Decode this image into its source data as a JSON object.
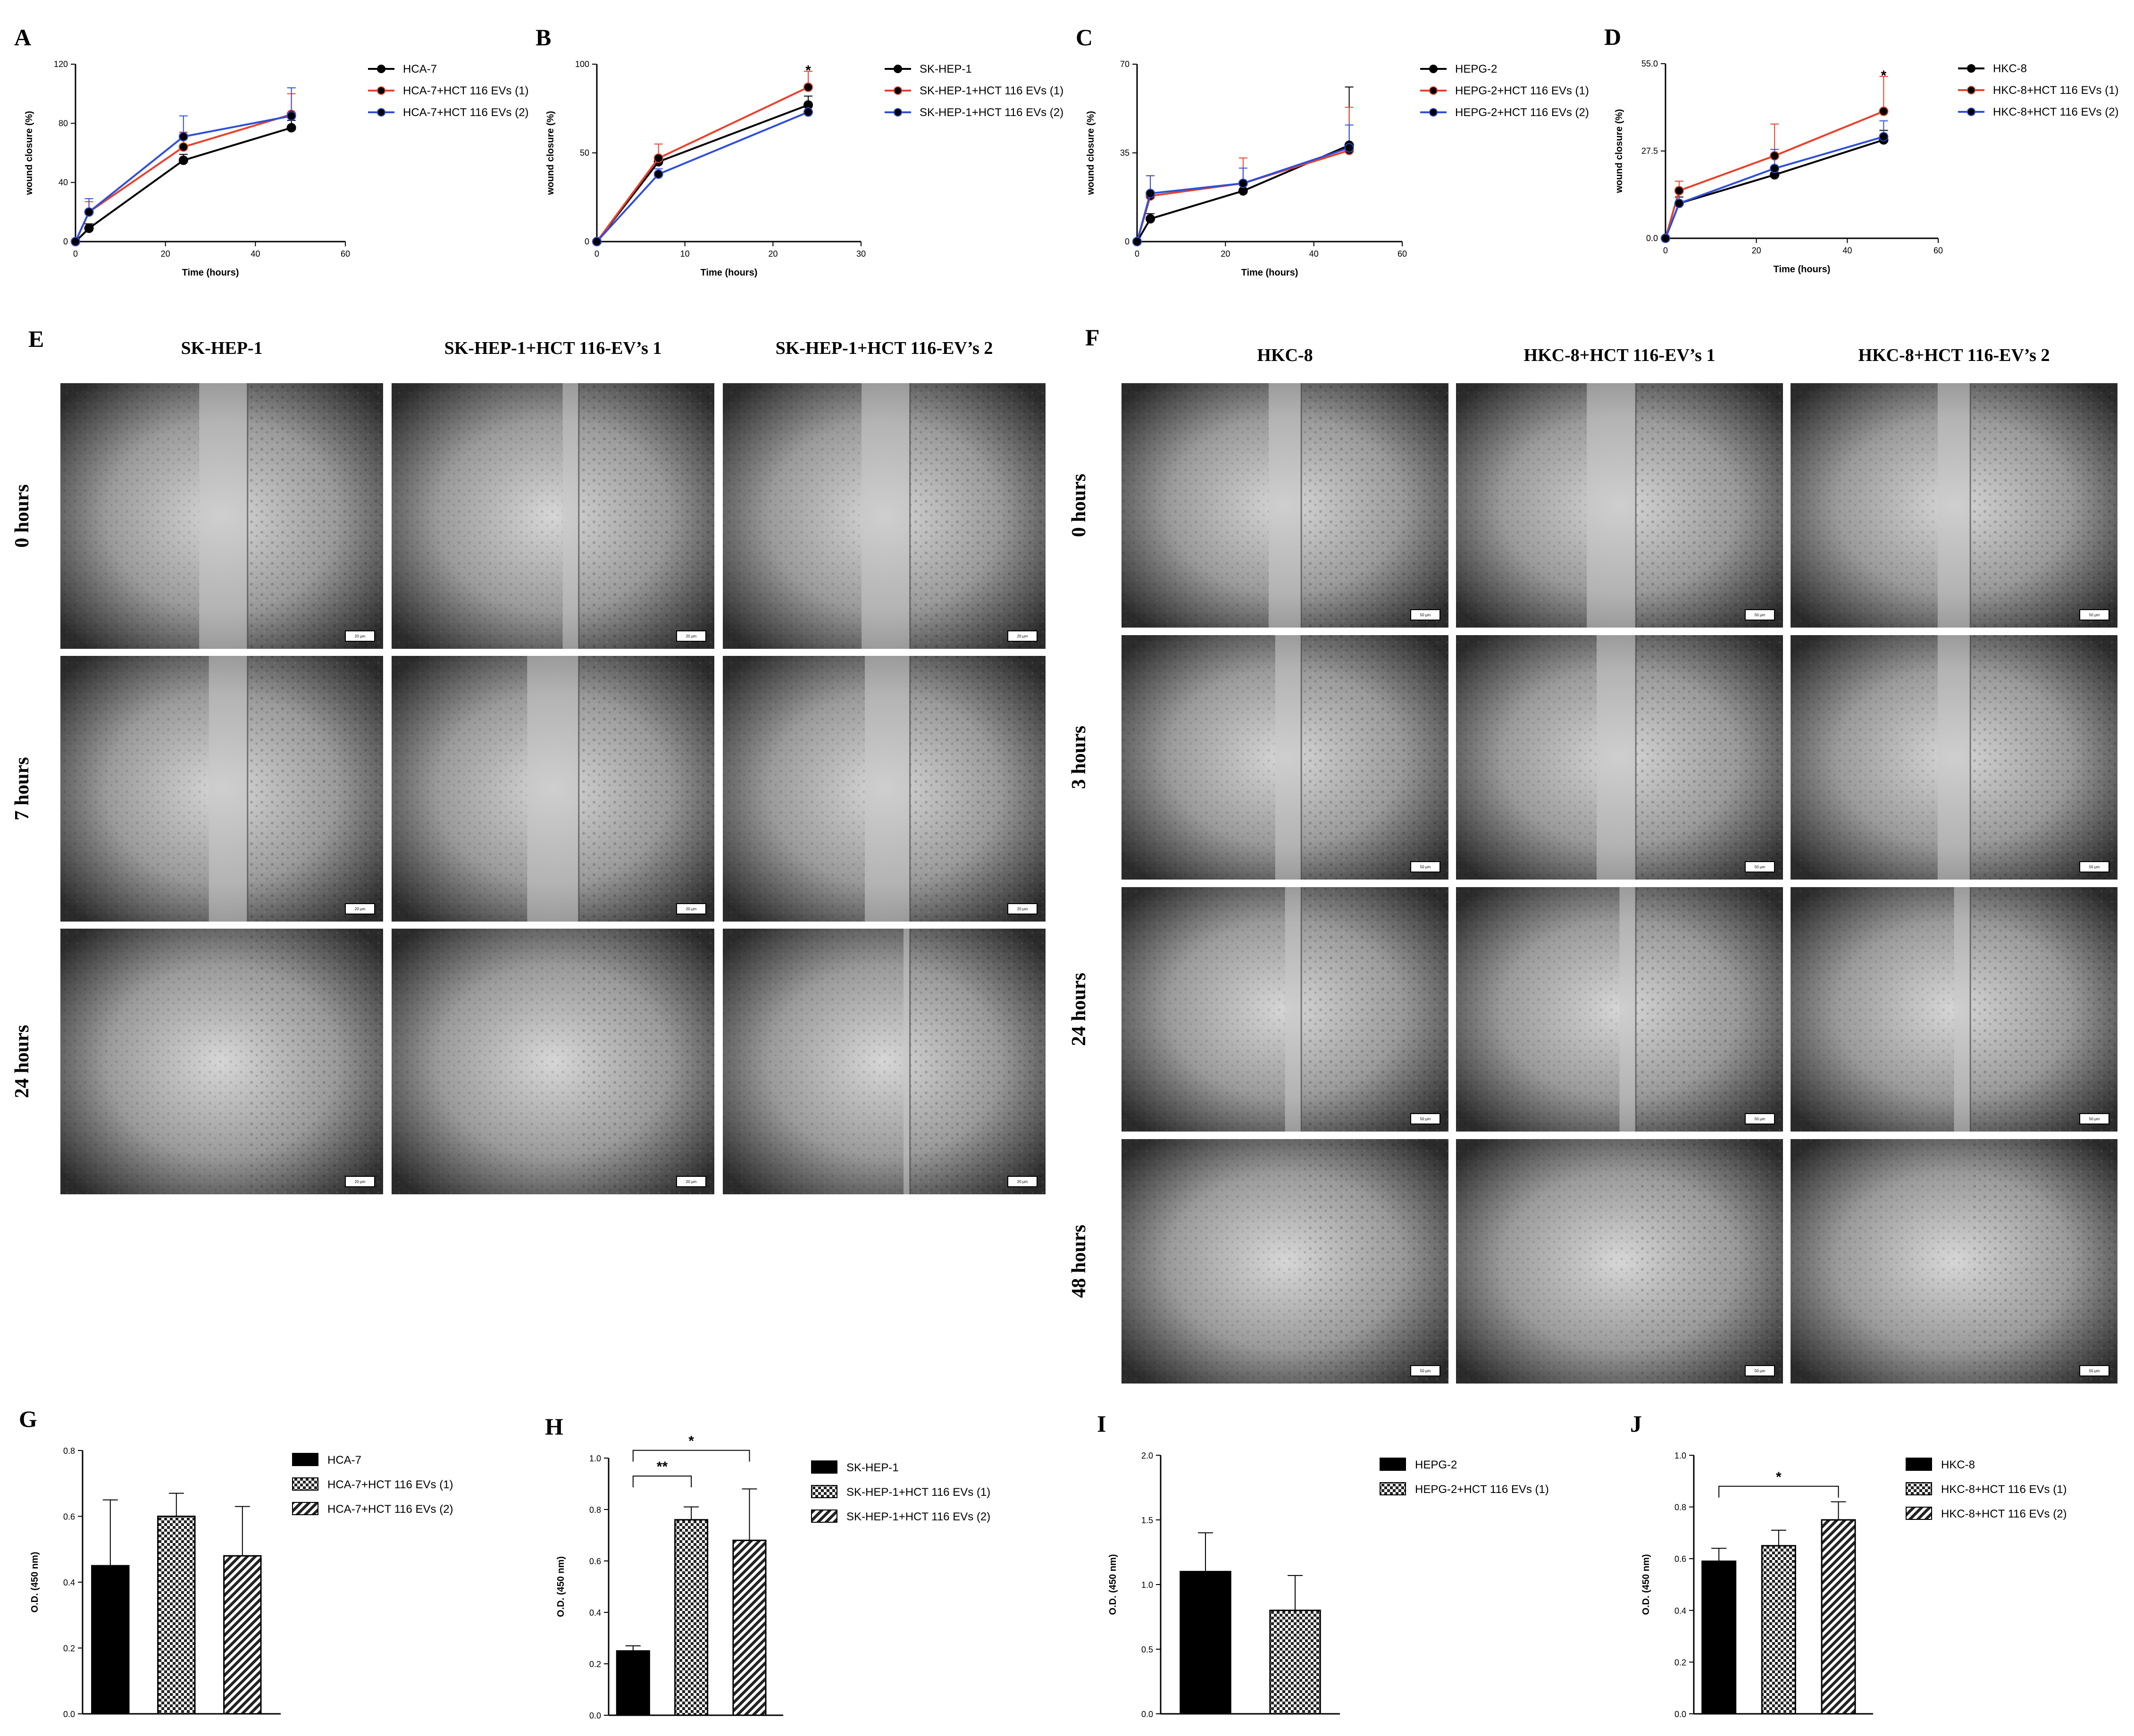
{
  "colors": {
    "black": "#000000",
    "red": "#e8412b",
    "blue": "#2f4fd8",
    "micro_center": "#d0d0d0",
    "micro_edge": "#2a2a2a"
  },
  "line_panels": [
    {
      "letter": "A",
      "chart_data": {
        "type": "line",
        "xlabel": "Time (hours)",
        "ylabel": "wound closure (%)",
        "xlim": [
          0,
          60
        ],
        "ylim": [
          0,
          120
        ],
        "xticks": [
          0,
          20,
          40,
          60
        ],
        "xtick_labels": [
          "0",
          "20",
          "40",
          "60"
        ],
        "yticks": [
          0,
          40,
          80,
          120
        ],
        "ytick_labels": [
          "0",
          "40",
          "80",
          "120"
        ],
        "x": [
          0,
          3,
          24,
          48
        ],
        "series": [
          {
            "name": "HCA-7",
            "color": "black",
            "values": [
              0,
              9,
              55,
              77
            ],
            "err": [
              0,
              3,
              4,
              5
            ]
          },
          {
            "name": "HCA-7+HCT 116 EVs (1)",
            "color": "red",
            "values": [
              0,
              20,
              64,
              86
            ],
            "err": [
              0,
              7,
              10,
              14
            ]
          },
          {
            "name": "HCA-7+HCT 116 EVs (2)",
            "color": "blue",
            "values": [
              0,
              20,
              71,
              85
            ],
            "err": [
              0,
              9,
              14,
              19
            ]
          }
        ],
        "significance": []
      }
    },
    {
      "letter": "B",
      "chart_data": {
        "type": "line",
        "xlabel": "Time (hours)",
        "ylabel": "wound closure (%)",
        "xlim": [
          0,
          30
        ],
        "ylim": [
          0,
          100
        ],
        "xticks": [
          0,
          10,
          20,
          30
        ],
        "xtick_labels": [
          "0",
          "10",
          "20",
          "30"
        ],
        "yticks": [
          0,
          50,
          100
        ],
        "ytick_labels": [
          "0",
          "50",
          "100"
        ],
        "x": [
          0,
          7,
          24
        ],
        "series": [
          {
            "name": "SK-HEP-1",
            "color": "black",
            "values": [
              0,
              45,
              77
            ],
            "err": [
              0,
              3,
              5
            ]
          },
          {
            "name": "SK-HEP-1+HCT 116 EVs (1)",
            "color": "red",
            "values": [
              0,
              47,
              87
            ],
            "err": [
              0,
              8,
              9
            ]
          },
          {
            "name": "SK-HEP-1+HCT 116 EVs (2)",
            "color": "blue",
            "values": [
              0,
              38,
              73
            ],
            "err": [
              0,
              3,
              3
            ]
          }
        ],
        "significance": [
          {
            "x": 24,
            "y": 96,
            "label": "*"
          }
        ]
      }
    },
    {
      "letter": "C",
      "chart_data": {
        "type": "line",
        "xlabel": "Time (hours)",
        "ylabel": "wound closure (%)",
        "xlim": [
          0,
          60
        ],
        "ylim": [
          0,
          70
        ],
        "xticks": [
          0,
          20,
          40,
          60
        ],
        "xtick_labels": [
          "0",
          "20",
          "40",
          "60"
        ],
        "yticks": [
          0,
          35,
          70
        ],
        "ytick_labels": [
          "0",
          "35",
          "70"
        ],
        "x": [
          0,
          3,
          24,
          48
        ],
        "series": [
          {
            "name": "HEPG-2",
            "color": "black",
            "values": [
              0,
              9,
              20,
              38
            ],
            "err": [
              0,
              2,
              3,
              23
            ]
          },
          {
            "name": "HEPG-2+HCT 116 EVs (1)",
            "color": "red",
            "values": [
              0,
              18,
              23,
              36
            ],
            "err": [
              0,
              8,
              10,
              17
            ]
          },
          {
            "name": "HEPG-2+HCT 116 EVs (2)",
            "color": "blue",
            "values": [
              0,
              19,
              23,
              37
            ],
            "err": [
              0,
              7,
              6,
              9
            ]
          }
        ],
        "significance": []
      }
    },
    {
      "letter": "D",
      "chart_data": {
        "type": "line",
        "xlabel": "Time (hours)",
        "ylabel": "wound closure (%)",
        "xlim": [
          0,
          60
        ],
        "ylim": [
          0,
          55
        ],
        "xticks": [
          0,
          20,
          40,
          60
        ],
        "xtick_labels": [
          "0",
          "20",
          "40",
          "60"
        ],
        "yticks": [
          0,
          27.5,
          55
        ],
        "ytick_labels": [
          "0.0",
          "27.5",
          "55.0"
        ],
        "x": [
          0,
          3,
          24,
          48
        ],
        "series": [
          {
            "name": "HKC-8",
            "color": "black",
            "values": [
              0,
              11,
              20,
              31
            ],
            "err": [
              0,
              2,
              2,
              3
            ]
          },
          {
            "name": "HKC-8+HCT 116 EVs (1)",
            "color": "red",
            "values": [
              0,
              15,
              26,
              40
            ],
            "err": [
              0,
              3,
              10,
              11
            ]
          },
          {
            "name": "HKC-8+HCT 116 EVs (2)",
            "color": "blue",
            "values": [
              0,
              11,
              22,
              32
            ],
            "err": [
              0,
              4,
              6,
              5
            ]
          }
        ],
        "significance": [
          {
            "x": 48,
            "y": 51,
            "label": "*"
          }
        ]
      }
    }
  ],
  "bar_panels": [
    {
      "letter": "G",
      "chart_data": {
        "type": "bar",
        "ylabel": "O.D. (450 nm)",
        "ylim": [
          0,
          0.8
        ],
        "yticks": [
          0,
          0.2,
          0.4,
          0.6,
          0.8
        ],
        "ytick_labels": [
          "0.0",
          "0.2",
          "0.4",
          "0.6",
          "0.8"
        ],
        "categories": [
          "HCA-7",
          "HCA-7+HCT 116 EVs (1)",
          "HCA-7+HCT 116 EVs (2)"
        ],
        "values": [
          0.45,
          0.6,
          0.48
        ],
        "err": [
          0.2,
          0.07,
          0.15
        ],
        "patterns": [
          "solid",
          "checker",
          "hatch"
        ],
        "significance": []
      }
    },
    {
      "letter": "H",
      "chart_data": {
        "type": "bar",
        "ylabel": "O.D. (450 nm)",
        "ylim": [
          0,
          1.0
        ],
        "yticks": [
          0,
          0.2,
          0.4,
          0.6,
          0.8,
          1.0
        ],
        "ytick_labels": [
          "0.0",
          "0.2",
          "0.4",
          "0.6",
          "0.8",
          "1.0"
        ],
        "categories": [
          "SK-HEP-1",
          "SK-HEP-1+HCT 116 EVs (1)",
          "SK-HEP-1+HCT 116 EVs (2)"
        ],
        "values": [
          0.25,
          0.76,
          0.68
        ],
        "err": [
          0.02,
          0.05,
          0.2
        ],
        "patterns": [
          "solid",
          "checker",
          "hatch"
        ],
        "significance": [
          {
            "from": 0,
            "to": 1,
            "y": 0.93,
            "label": "**"
          },
          {
            "from": 0,
            "to": 2,
            "y": 1.03,
            "label": "*"
          }
        ]
      }
    },
    {
      "letter": "I",
      "chart_data": {
        "type": "bar",
        "ylabel": "O.D. (450 nm)",
        "ylim": [
          0,
          2.0
        ],
        "yticks": [
          0,
          0.5,
          1.0,
          1.5,
          2.0
        ],
        "ytick_labels": [
          "0.0",
          "0.5",
          "1.0",
          "1.5",
          "2.0"
        ],
        "categories": [
          "HEPG-2",
          "HEPG-2+HCT 116 EVs (1)"
        ],
        "values": [
          1.1,
          0.8
        ],
        "err": [
          0.3,
          0.27
        ],
        "patterns": [
          "solid",
          "checker"
        ],
        "significance": []
      }
    },
    {
      "letter": "J",
      "chart_data": {
        "type": "bar",
        "ylabel": "O.D. (450 nm)",
        "ylim": [
          0,
          1.0
        ],
        "yticks": [
          0,
          0.2,
          0.4,
          0.6,
          0.8,
          1.0
        ],
        "ytick_labels": [
          "0.0",
          "0.2",
          "0.4",
          "0.6",
          "0.8",
          "1.0"
        ],
        "categories": [
          "HKC-8",
          "HKC-8+HCT 116 EVs (1)",
          "HKC-8+HCT 116 EVs (2)"
        ],
        "values": [
          0.59,
          0.65,
          0.75
        ],
        "err": [
          0.05,
          0.06,
          0.07
        ],
        "patterns": [
          "solid",
          "checker",
          "hatch"
        ],
        "significance": [
          {
            "from": 0,
            "to": 2,
            "y": 0.88,
            "label": "*"
          }
        ]
      }
    }
  ],
  "micro_E": {
    "letter": "E",
    "columns": [
      "SK-HEP-1",
      "SK-HEP-1+HCT 116-EV’s 1",
      "SK-HEP-1+HCT 116-EV’s 2"
    ],
    "rows": [
      "0 hours",
      "7 hours",
      "24 hours"
    ],
    "scale": "20 µm",
    "gap_fraction": [
      [
        0.15,
        0.05,
        0.15
      ],
      [
        0.12,
        0.16,
        0.14
      ],
      [
        0.0,
        0.0,
        0.02
      ]
    ]
  },
  "micro_F": {
    "letter": "F",
    "columns": [
      "HKC-8",
      "HKC-8+HCT 116-EV’s 1",
      "HKC-8+HCT 116-EV’s 2"
    ],
    "rows": [
      "0 hours",
      "3 hours",
      "24 hours",
      "48 hours"
    ],
    "scale": "50 µm",
    "gap_fraction": [
      [
        0.1,
        0.15,
        0.1
      ],
      [
        0.08,
        0.12,
        0.1
      ],
      [
        0.05,
        0.05,
        0.05
      ],
      [
        0.0,
        0.0,
        0.0
      ]
    ]
  }
}
